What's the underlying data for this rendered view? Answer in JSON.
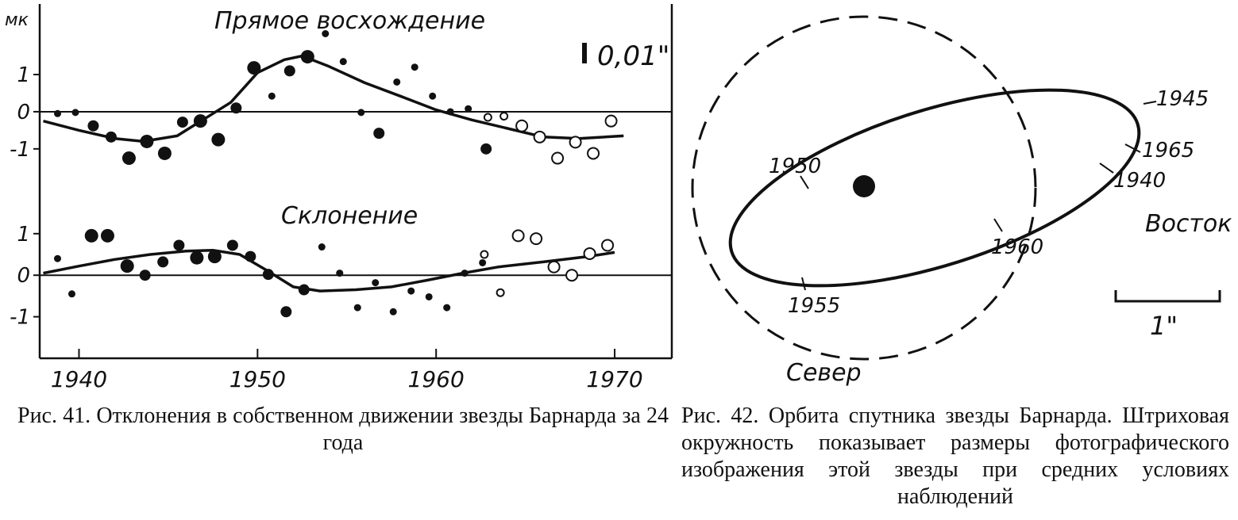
{
  "chart_data": [
    {
      "type": "scatter",
      "title": "Рис. 41. Отклонения в собственном движении звезды Барнарда за 24 года",
      "unit_label": "мк",
      "scale_bar_label": "0,01\"",
      "xlim": [
        1937.8,
        1973.2
      ],
      "xticks": [
        1940,
        1950,
        1960,
        1970
      ],
      "xtick_labels": [
        "1940",
        "1950",
        "1960",
        "1970"
      ],
      "panels": [
        {
          "title": "Прямое восхождение",
          "ylim": [
            -1.9,
            2.9
          ],
          "yticks": [
            1,
            0,
            -1
          ],
          "ytick_labels": [
            "1",
            "0",
            "-1"
          ],
          "points": [
            {
              "x": 1938.8,
              "y": -0.05,
              "s": "small"
            },
            {
              "x": 1939.8,
              "y": -0.02,
              "s": "small"
            },
            {
              "x": 1940.8,
              "y": -0.38,
              "s": "medium"
            },
            {
              "x": 1941.8,
              "y": -0.68,
              "s": "medium"
            },
            {
              "x": 1942.8,
              "y": -1.25,
              "s": "large"
            },
            {
              "x": 1943.8,
              "y": -0.8,
              "s": "large"
            },
            {
              "x": 1944.8,
              "y": -1.12,
              "s": "large"
            },
            {
              "x": 1945.8,
              "y": -0.28,
              "s": "medium"
            },
            {
              "x": 1946.8,
              "y": -0.25,
              "s": "large"
            },
            {
              "x": 1947.8,
              "y": -0.75,
              "s": "large"
            },
            {
              "x": 1948.8,
              "y": 0.1,
              "s": "medium"
            },
            {
              "x": 1949.8,
              "y": 1.18,
              "s": "large"
            },
            {
              "x": 1950.8,
              "y": 0.42,
              "s": "small"
            },
            {
              "x": 1951.8,
              "y": 1.1,
              "s": "medium"
            },
            {
              "x": 1952.8,
              "y": 1.48,
              "s": "large"
            },
            {
              "x": 1953.8,
              "y": 2.1,
              "s": "small"
            },
            {
              "x": 1954.8,
              "y": 1.35,
              "s": "small"
            },
            {
              "x": 1955.8,
              "y": -0.02,
              "s": "small"
            },
            {
              "x": 1956.8,
              "y": -0.58,
              "s": "medium"
            },
            {
              "x": 1957.8,
              "y": 0.8,
              "s": "small"
            },
            {
              "x": 1958.8,
              "y": 1.2,
              "s": "small"
            },
            {
              "x": 1959.8,
              "y": 0.42,
              "s": "small"
            },
            {
              "x": 1960.8,
              "y": 0.0,
              "s": "small"
            },
            {
              "x": 1961.8,
              "y": 0.08,
              "s": "small"
            },
            {
              "x": 1962.8,
              "y": -1.0,
              "s": "medium"
            },
            {
              "x": 1962.9,
              "y": -0.15,
              "s": "small",
              "open": true
            },
            {
              "x": 1963.8,
              "y": -0.12,
              "s": "small",
              "open": true
            },
            {
              "x": 1964.8,
              "y": -0.38,
              "s": "medium",
              "open": true
            },
            {
              "x": 1965.8,
              "y": -0.68,
              "s": "medium",
              "open": true
            },
            {
              "x": 1966.8,
              "y": -1.25,
              "s": "medium",
              "open": true
            },
            {
              "x": 1967.8,
              "y": -0.82,
              "s": "medium",
              "open": true
            },
            {
              "x": 1968.8,
              "y": -1.12,
              "s": "medium",
              "open": true
            },
            {
              "x": 1969.8,
              "y": -0.25,
              "s": "medium",
              "open": true
            }
          ],
          "curve": [
            [
              1938.0,
              -0.25
            ],
            [
              1940.0,
              -0.5
            ],
            [
              1942.0,
              -0.72
            ],
            [
              1943.6,
              -0.8
            ],
            [
              1945.5,
              -0.65
            ],
            [
              1947.0,
              -0.2
            ],
            [
              1948.5,
              0.25
            ],
            [
              1950.0,
              1.05
            ],
            [
              1951.5,
              1.4
            ],
            [
              1952.5,
              1.5
            ],
            [
              1954.0,
              1.22
            ],
            [
              1956.0,
              0.78
            ],
            [
              1958.0,
              0.42
            ],
            [
              1960.0,
              0.05
            ],
            [
              1962.0,
              -0.22
            ],
            [
              1964.0,
              -0.45
            ],
            [
              1966.0,
              -0.68
            ],
            [
              1968.0,
              -0.72
            ],
            [
              1970.5,
              -0.65
            ]
          ]
        },
        {
          "title": "Склонение",
          "ylim": [
            -2.0,
            1.95
          ],
          "yticks": [
            1,
            0,
            -1
          ],
          "ytick_labels": [
            "1",
            "0",
            "-1"
          ],
          "points": [
            {
              "x": 1938.8,
              "y": 0.4,
              "s": "small"
            },
            {
              "x": 1939.6,
              "y": -0.45,
              "s": "small"
            },
            {
              "x": 1940.7,
              "y": 0.95,
              "s": "large"
            },
            {
              "x": 1941.6,
              "y": 0.95,
              "s": "large"
            },
            {
              "x": 1942.7,
              "y": 0.22,
              "s": "large"
            },
            {
              "x": 1943.7,
              "y": 0.0,
              "s": "medium"
            },
            {
              "x": 1944.7,
              "y": 0.32,
              "s": "medium"
            },
            {
              "x": 1945.6,
              "y": 0.72,
              "s": "medium"
            },
            {
              "x": 1946.6,
              "y": 0.42,
              "s": "large"
            },
            {
              "x": 1947.6,
              "y": 0.45,
              "s": "large"
            },
            {
              "x": 1948.6,
              "y": 0.72,
              "s": "medium"
            },
            {
              "x": 1949.6,
              "y": 0.45,
              "s": "medium"
            },
            {
              "x": 1950.6,
              "y": 0.02,
              "s": "medium"
            },
            {
              "x": 1951.6,
              "y": -0.88,
              "s": "medium"
            },
            {
              "x": 1952.6,
              "y": -0.35,
              "s": "medium"
            },
            {
              "x": 1953.6,
              "y": 0.68,
              "s": "small"
            },
            {
              "x": 1954.6,
              "y": 0.05,
              "s": "small"
            },
            {
              "x": 1955.6,
              "y": -0.78,
              "s": "small"
            },
            {
              "x": 1956.6,
              "y": -0.18,
              "s": "small"
            },
            {
              "x": 1957.6,
              "y": -0.88,
              "s": "small"
            },
            {
              "x": 1958.6,
              "y": -0.38,
              "s": "small"
            },
            {
              "x": 1959.6,
              "y": -0.52,
              "s": "small"
            },
            {
              "x": 1960.6,
              "y": -0.78,
              "s": "small"
            },
            {
              "x": 1961.6,
              "y": 0.05,
              "s": "small"
            },
            {
              "x": 1962.6,
              "y": 0.3,
              "s": "small"
            },
            {
              "x": 1962.7,
              "y": 0.5,
              "s": "small",
              "open": true
            },
            {
              "x": 1963.6,
              "y": -0.42,
              "s": "small",
              "open": true
            },
            {
              "x": 1964.6,
              "y": 0.95,
              "s": "medium",
              "open": true
            },
            {
              "x": 1965.6,
              "y": 0.88,
              "s": "medium",
              "open": true
            },
            {
              "x": 1966.6,
              "y": 0.2,
              "s": "medium",
              "open": true
            },
            {
              "x": 1967.6,
              "y": 0.0,
              "s": "medium",
              "open": true
            },
            {
              "x": 1968.6,
              "y": 0.52,
              "s": "medium",
              "open": true
            },
            {
              "x": 1969.6,
              "y": 0.72,
              "s": "medium",
              "open": true
            }
          ],
          "curve": [
            [
              1938.0,
              0.05
            ],
            [
              1940.0,
              0.22
            ],
            [
              1942.0,
              0.38
            ],
            [
              1944.0,
              0.5
            ],
            [
              1946.0,
              0.58
            ],
            [
              1947.5,
              0.6
            ],
            [
              1949.0,
              0.5
            ],
            [
              1950.5,
              0.12
            ],
            [
              1952.0,
              -0.28
            ],
            [
              1953.5,
              -0.38
            ],
            [
              1955.5,
              -0.35
            ],
            [
              1957.5,
              -0.28
            ],
            [
              1959.5,
              -0.12
            ],
            [
              1961.5,
              0.05
            ],
            [
              1963.5,
              0.2
            ],
            [
              1966.0,
              0.32
            ],
            [
              1968.5,
              0.45
            ],
            [
              1970.0,
              0.55
            ]
          ]
        }
      ]
    },
    {
      "type": "diagram",
      "title": "Рис. 42. Орбита спутника звезды Барнарда. Штриховая окружность показывает размеры фотографического изображения этой звезды при средних условиях наблюдений",
      "direction_labels": {
        "east": "Восток",
        "north": "Север"
      },
      "scale_bar_label": "1\"",
      "orbit_year_labels": [
        "1945",
        "1965",
        "1940",
        "1950",
        "1960",
        "1955"
      ]
    }
  ]
}
